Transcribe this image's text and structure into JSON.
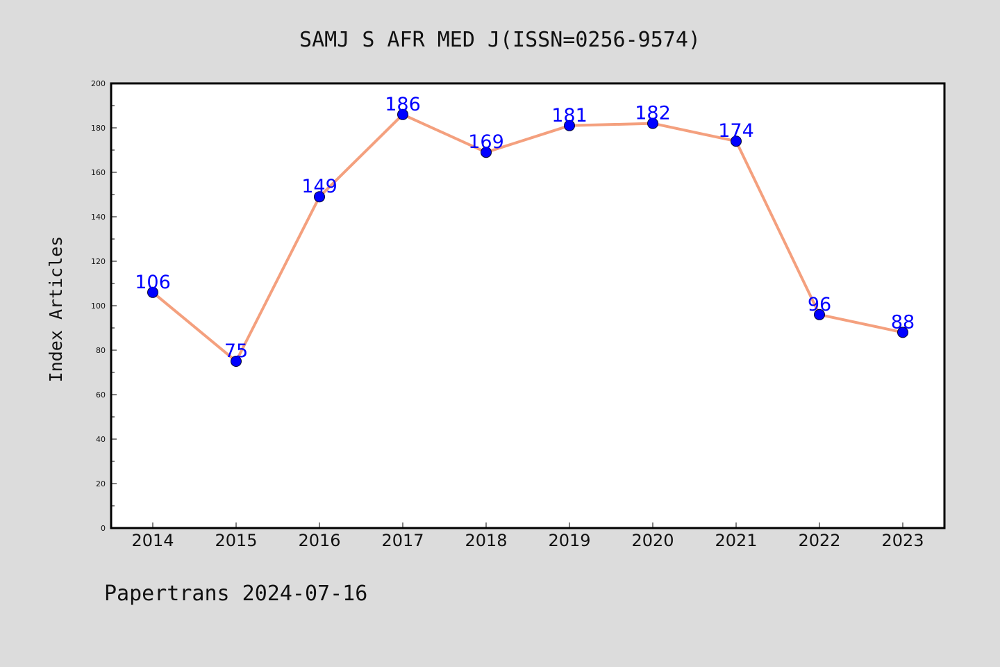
{
  "colors": {
    "background": "#dcdcdc",
    "plot_background": "#ffffff",
    "line": "#f4a07e",
    "marker": "#0000ff",
    "data_label": "#0000ff",
    "axis": "#000000"
  },
  "chart_data": {
    "type": "line",
    "title": "SAMJ S AFR MED J(ISSN=0256-9574)",
    "xlabel": "",
    "ylabel": "Index Articles",
    "categories": [
      "2014",
      "2015",
      "2016",
      "2017",
      "2018",
      "2019",
      "2020",
      "2021",
      "2022",
      "2023"
    ],
    "series": [
      {
        "values": [
          106,
          75,
          149,
          186,
          169,
          181,
          182,
          174,
          96,
          88
        ]
      }
    ],
    "ylim": [
      0,
      200
    ],
    "yticks": [
      0,
      20,
      40,
      60,
      80,
      100,
      120,
      140,
      160,
      180,
      200
    ],
    "data_labels": true,
    "grid": false,
    "footer": "Papertrans 2024-07-16"
  }
}
